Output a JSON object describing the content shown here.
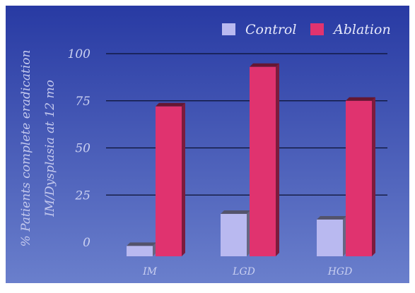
{
  "chart_data": {
    "type": "bar",
    "title": "",
    "xlabel": "",
    "ylabel": [
      "% Patients complete eradication",
      "IM/Dysplasia at 12 mo"
    ],
    "categories": [
      "IM",
      "LGD",
      "HGD"
    ],
    "series": [
      {
        "name": "Control",
        "values": [
          -2,
          15,
          12
        ],
        "color": "#b9b9f0"
      },
      {
        "name": "Ablation",
        "values": [
          72,
          93,
          75
        ],
        "color": "#e0336f"
      }
    ],
    "ylim": [
      0,
      100
    ],
    "y_ticks": [
      "0",
      "25",
      "50",
      "75",
      "100"
    ],
    "grid": true,
    "legend": "top-right",
    "style": "3d",
    "background": [
      "#283aa3",
      "#6a7fcc"
    ]
  }
}
